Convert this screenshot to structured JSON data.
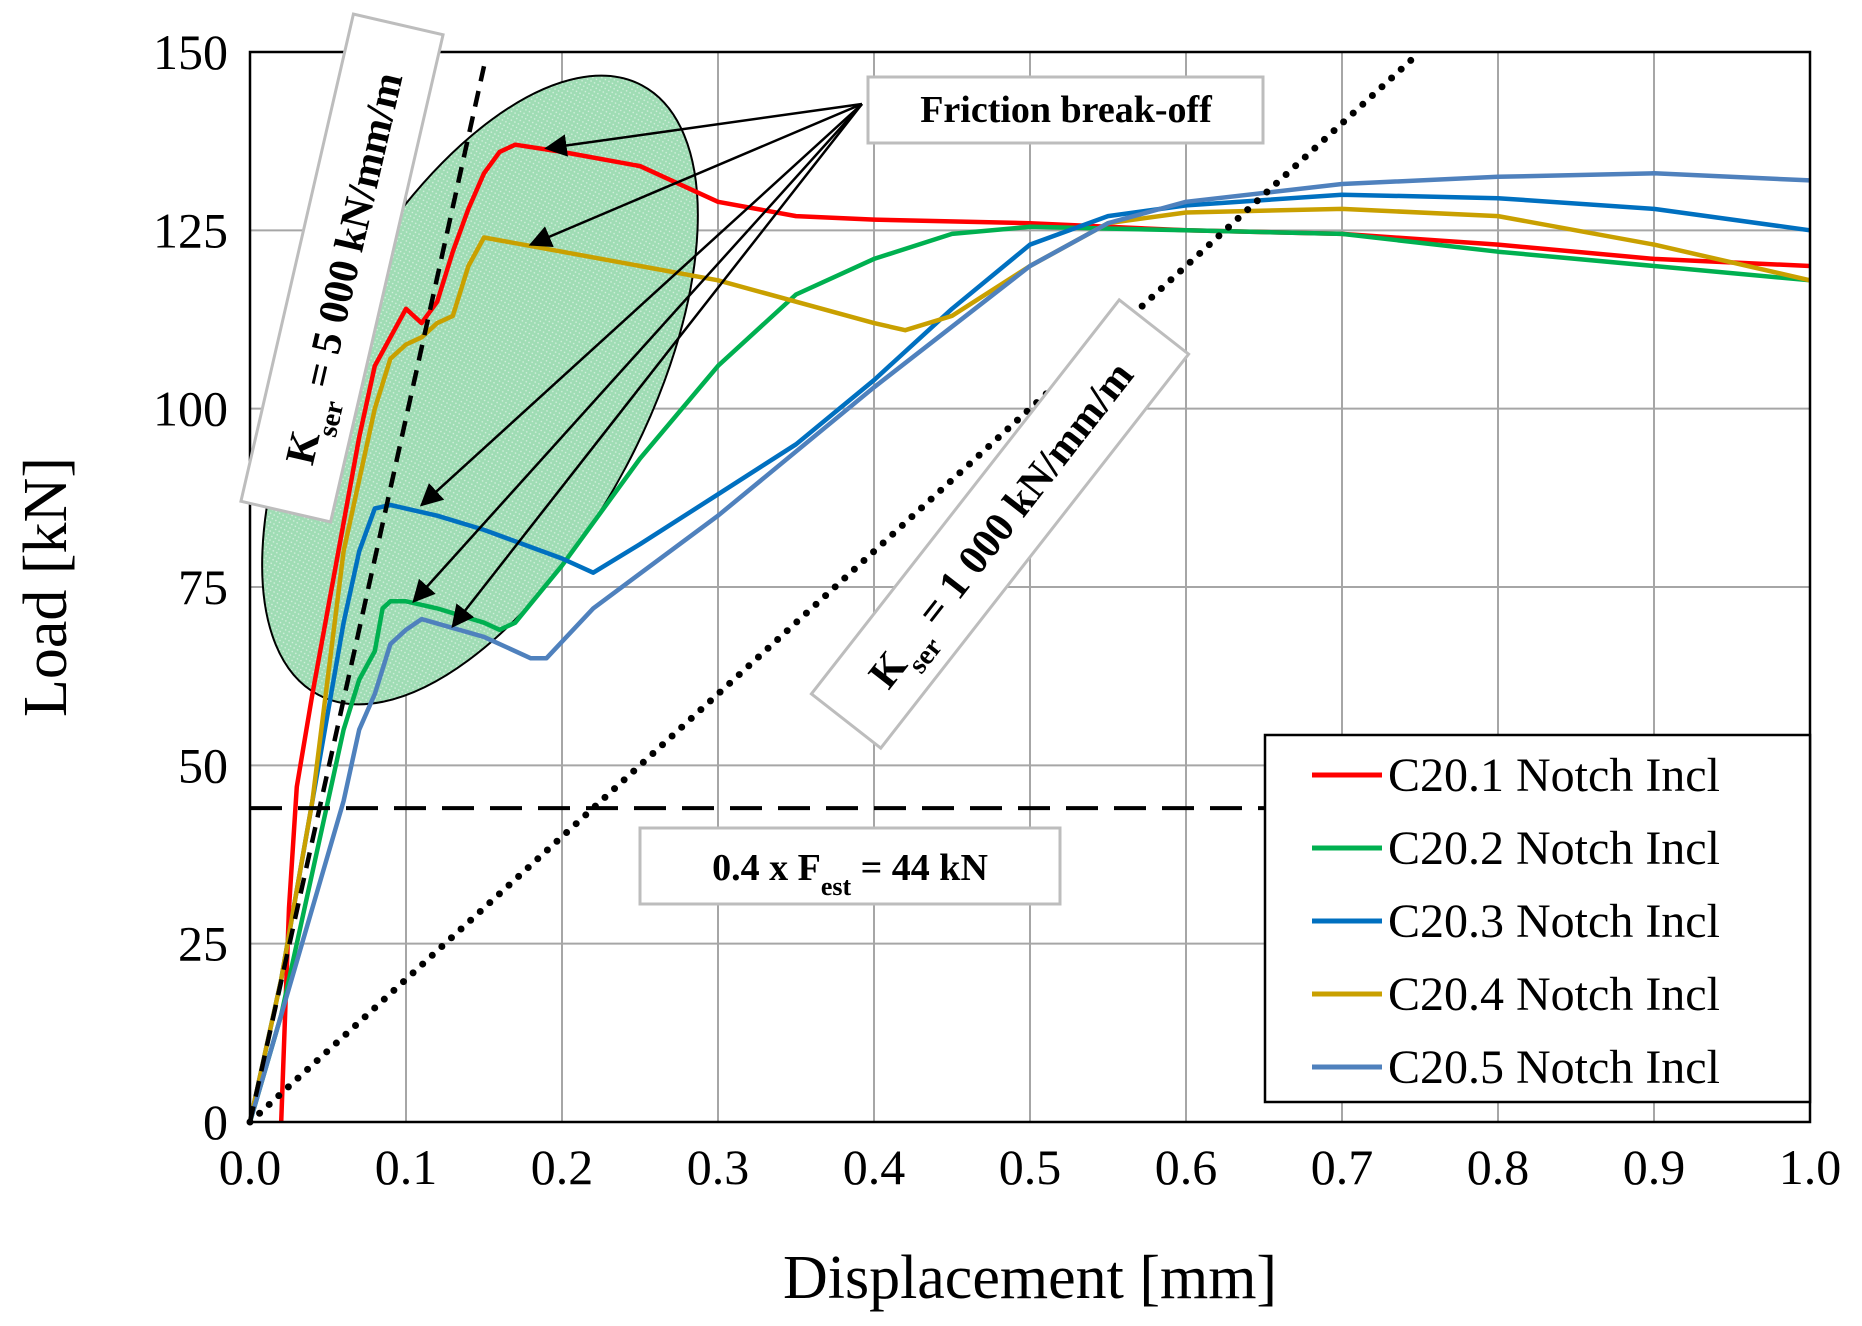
{
  "chart_data": {
    "type": "line",
    "xlabel": "Displacement [mm]",
    "ylabel": "Load [kN]",
    "xlim": [
      0,
      1.0
    ],
    "ylim": [
      0,
      150
    ],
    "xticks": [
      "0.0",
      "0.1",
      "0.2",
      "0.3",
      "0.4",
      "0.5",
      "0.6",
      "0.7",
      "0.8",
      "0.9",
      "1.0"
    ],
    "yticks": [
      "0",
      "25",
      "50",
      "75",
      "100",
      "125",
      "150"
    ],
    "grid": true,
    "legend_position": "bottom-right",
    "series": [
      {
        "name": "C20.1 Notch Incl",
        "color": "#ff0000",
        "x": [
          0.02,
          0.025,
          0.03,
          0.04,
          0.05,
          0.06,
          0.07,
          0.08,
          0.09,
          0.1,
          0.11,
          0.12,
          0.13,
          0.14,
          0.15,
          0.16,
          0.17,
          0.2,
          0.25,
          0.3,
          0.35,
          0.4,
          0.5,
          0.6,
          0.7,
          0.8,
          0.9,
          1.0
        ],
        "y": [
          0,
          30,
          47,
          60,
          72,
          84,
          96,
          106,
          110,
          114,
          112,
          115,
          122,
          128,
          133,
          136,
          137,
          136,
          134,
          129,
          127,
          126.5,
          126,
          125,
          124.5,
          123,
          121,
          120
        ]
      },
      {
        "name": "C20.2 Notch Incl",
        "color": "#00b050",
        "x": [
          0.0,
          0.02,
          0.04,
          0.06,
          0.07,
          0.08,
          0.085,
          0.09,
          0.1,
          0.12,
          0.15,
          0.16,
          0.17,
          0.2,
          0.25,
          0.3,
          0.35,
          0.4,
          0.45,
          0.5,
          0.6,
          0.7,
          0.8,
          0.9,
          1.0
        ],
        "y": [
          0,
          15,
          35,
          55,
          62,
          66,
          72,
          73,
          73,
          72,
          70,
          69,
          70,
          78,
          93,
          106,
          116,
          121,
          124.5,
          125.5,
          125,
          124.5,
          122,
          120,
          118
        ]
      },
      {
        "name": "C20.3 Notch Incl",
        "color": "#0070c0",
        "x": [
          0.0,
          0.02,
          0.04,
          0.06,
          0.07,
          0.08,
          0.09,
          0.12,
          0.15,
          0.2,
          0.22,
          0.25,
          0.3,
          0.35,
          0.4,
          0.45,
          0.5,
          0.55,
          0.6,
          0.7,
          0.8,
          0.9,
          1.0
        ],
        "y": [
          0,
          20,
          45,
          70,
          80,
          86,
          86.5,
          85,
          83,
          79,
          77,
          81,
          88,
          95,
          104,
          114,
          123,
          127,
          128.5,
          130,
          129.5,
          128,
          125
        ]
      },
      {
        "name": "C20.4 Notch Incl",
        "color": "#c9a000",
        "x": [
          0.0,
          0.02,
          0.04,
          0.06,
          0.08,
          0.09,
          0.1,
          0.11,
          0.12,
          0.13,
          0.14,
          0.15,
          0.2,
          0.3,
          0.4,
          0.42,
          0.45,
          0.5,
          0.55,
          0.6,
          0.7,
          0.8,
          0.9,
          1.0
        ],
        "y": [
          0,
          20,
          45,
          80,
          100,
          107,
          109,
          110,
          112,
          113,
          120,
          124,
          122,
          118,
          112,
          111,
          113,
          120,
          126,
          127.5,
          128,
          127,
          123,
          118
        ]
      },
      {
        "name": "C20.5 Notch Incl",
        "color": "#4f81bd",
        "x": [
          0.0,
          0.02,
          0.04,
          0.06,
          0.07,
          0.08,
          0.09,
          0.1,
          0.11,
          0.15,
          0.18,
          0.19,
          0.22,
          0.3,
          0.4,
          0.5,
          0.55,
          0.6,
          0.7,
          0.8,
          0.9,
          1.0
        ],
        "y": [
          0,
          15,
          30,
          45,
          55,
          60,
          67,
          69,
          70.5,
          68,
          65,
          65,
          72,
          85,
          103,
          120,
          126,
          129,
          131.5,
          132.5,
          133,
          132
        ]
      }
    ],
    "reference_lines": [
      {
        "label": "K_ser = 5 000 kN/mm/m",
        "style": "dashed",
        "x": [
          0.0,
          0.15
        ],
        "y": [
          0,
          148
        ]
      },
      {
        "label": "K_ser = 1 000 kN/mm/m",
        "style": "dotted",
        "x": [
          0.0,
          0.75
        ],
        "y": [
          0,
          150
        ]
      },
      {
        "label": "0.4 x F_est = 44 kN",
        "style": "long-dash",
        "x": [
          0.0,
          1.0
        ],
        "y": [
          44,
          44
        ]
      }
    ]
  },
  "annotations": {
    "friction": "Friction break-off",
    "kser5_k": "K",
    "kser5_sub": "ser",
    "kser5_rest": " = 5 000 kN/mm/m",
    "kser1_k": "K",
    "kser1_sub": "ser",
    "kser1_rest": " = 1 000 kN/mm/m",
    "fest_pre": "0.4 x F",
    "fest_sub": "est",
    "fest_rest": " = 44 kN"
  },
  "colors": {
    "ellipse_fill": "#9fdcb4",
    "reference": "#000000"
  }
}
